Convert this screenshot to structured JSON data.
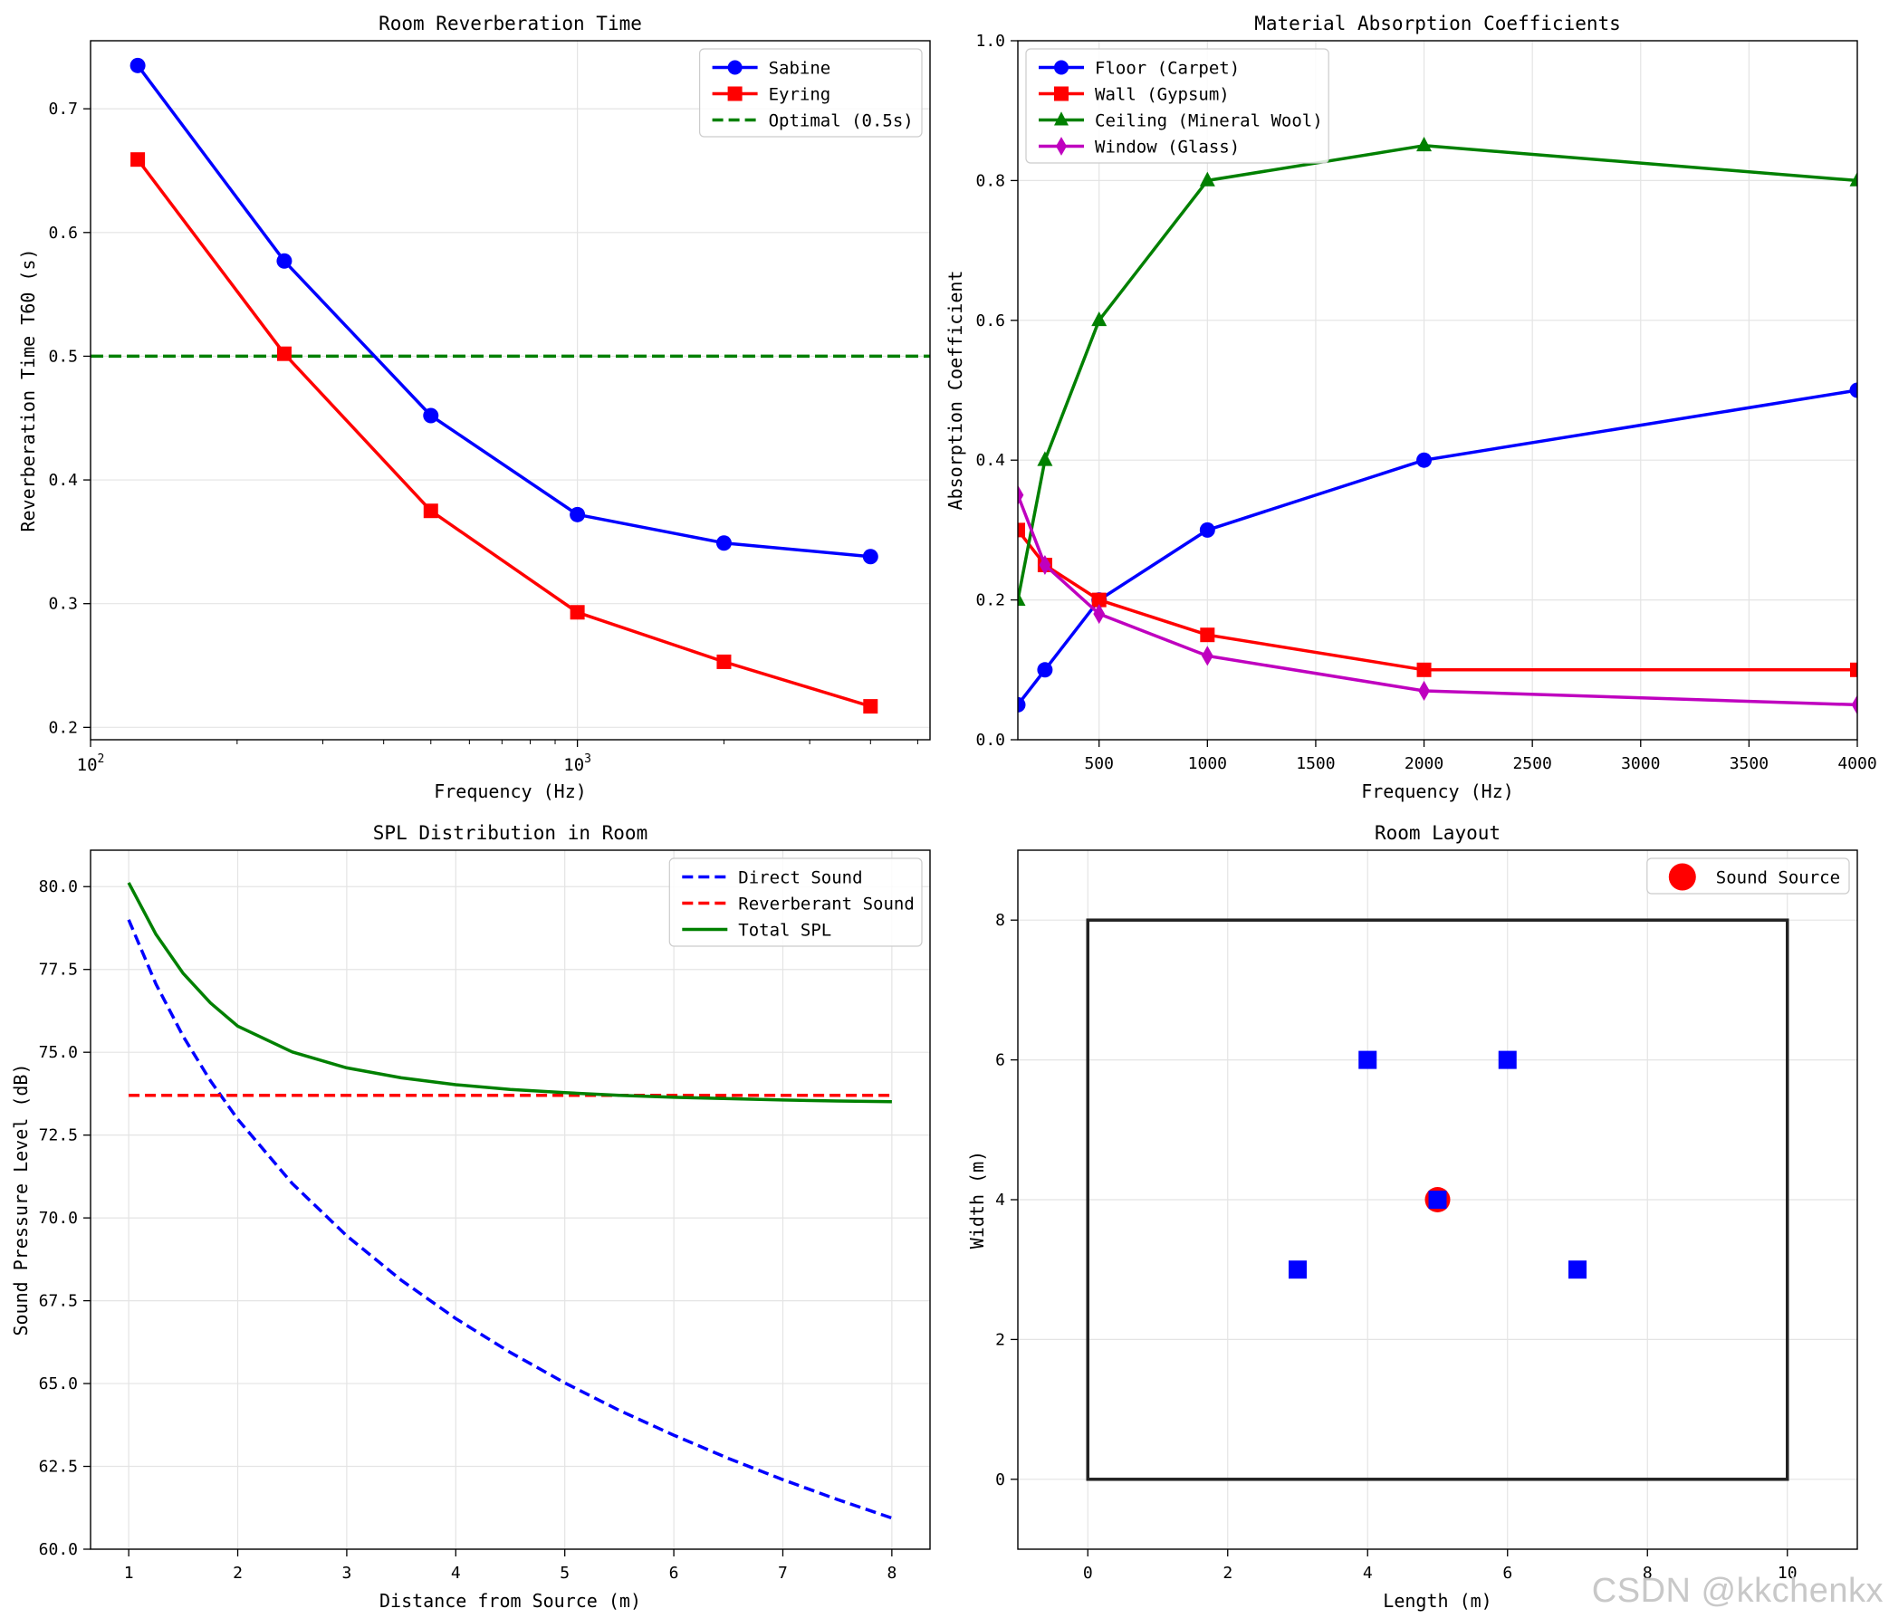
{
  "watermark": "CSDN @kkchenkx",
  "colors": {
    "blue": "#0000ff",
    "red": "#ff0000",
    "green": "#008000",
    "magenta": "#bf00bf",
    "black": "#222222",
    "grid": "#e4e4e4"
  },
  "chart_data": [
    {
      "id": "reverb",
      "type": "line",
      "title": "Room Reverberation Time",
      "xlabel": "Frequency (Hz)",
      "ylabel": "Reverberation Time T60 (s)",
      "xscale": "log",
      "xlim": [
        100,
        5300
      ],
      "ylim": [
        0.19,
        0.755
      ],
      "x_ticks": [
        100,
        1000
      ],
      "x_tick_labels": [
        {
          "base": "10",
          "exp": "2"
        },
        {
          "base": "10",
          "exp": "3"
        }
      ],
      "y_ticks": [
        0.2,
        0.3,
        0.4,
        0.5,
        0.6,
        0.7
      ],
      "y_tick_labels": [
        "0.2",
        "0.3",
        "0.4",
        "0.5",
        "0.6",
        "0.7"
      ],
      "x": [
        125,
        250,
        500,
        1000,
        2000,
        4000
      ],
      "series": [
        {
          "name": "Sabine",
          "color": "#0000ff",
          "marker": "circle",
          "values": [
            0.735,
            0.577,
            0.452,
            0.372,
            0.349,
            0.338
          ]
        },
        {
          "name": "Eyring",
          "color": "#ff0000",
          "marker": "square",
          "values": [
            0.659,
            0.502,
            0.375,
            0.293,
            0.253,
            0.217
          ]
        }
      ],
      "hlines": [
        {
          "name": "Optimal (0.5s)",
          "color": "#008000",
          "value": 0.5
        }
      ],
      "legend_position": "top-right",
      "legend": [
        {
          "label": "Sabine",
          "color": "#0000ff",
          "style": "solid",
          "marker": "circle"
        },
        {
          "label": "Eyring",
          "color": "#ff0000",
          "style": "solid",
          "marker": "square"
        },
        {
          "label": "Optimal (0.5s)",
          "color": "#008000",
          "style": "dashed",
          "marker": "none"
        }
      ]
    },
    {
      "id": "absorption",
      "type": "line",
      "title": "Material Absorption Coefficients",
      "xlabel": "Frequency (Hz)",
      "ylabel": "Absorption Coefficient",
      "xlim": [
        125,
        4000
      ],
      "ylim": [
        0,
        1.0
      ],
      "x_ticks": [
        500,
        1000,
        1500,
        2000,
        2500,
        3000,
        3500,
        4000
      ],
      "x_tick_labels": [
        "500",
        "1000",
        "1500",
        "2000",
        "2500",
        "3000",
        "3500",
        "4000"
      ],
      "y_ticks": [
        0,
        0.2,
        0.4,
        0.6,
        0.8,
        1.0
      ],
      "y_tick_labels": [
        "0.0",
        "0.2",
        "0.4",
        "0.6",
        "0.8",
        "1.0"
      ],
      "x": [
        125,
        250,
        500,
        1000,
        2000,
        4000
      ],
      "series": [
        {
          "name": "Floor (Carpet)",
          "color": "#0000ff",
          "marker": "circle",
          "values": [
            0.05,
            0.1,
            0.2,
            0.3,
            0.4,
            0.5
          ]
        },
        {
          "name": "Wall (Gypsum)",
          "color": "#ff0000",
          "marker": "square",
          "values": [
            0.3,
            0.25,
            0.2,
            0.15,
            0.1,
            0.1
          ]
        },
        {
          "name": "Ceiling (Mineral Wool)",
          "color": "#008000",
          "marker": "triangle",
          "values": [
            0.2,
            0.4,
            0.6,
            0.8,
            0.85,
            0.8
          ]
        },
        {
          "name": "Window (Glass)",
          "color": "#bf00bf",
          "marker": "diamond",
          "values": [
            0.35,
            0.25,
            0.18,
            0.12,
            0.07,
            0.05
          ]
        }
      ],
      "legend_position": "top-left",
      "legend": [
        {
          "label": "Floor (Carpet)",
          "color": "#0000ff",
          "style": "solid",
          "marker": "circle"
        },
        {
          "label": "Wall (Gypsum)",
          "color": "#ff0000",
          "style": "solid",
          "marker": "square"
        },
        {
          "label": "Ceiling (Mineral Wool)",
          "color": "#008000",
          "style": "solid",
          "marker": "triangle"
        },
        {
          "label": "Window (Glass)",
          "color": "#bf00bf",
          "style": "solid",
          "marker": "diamond"
        }
      ]
    },
    {
      "id": "spl",
      "type": "line",
      "title": "SPL Distribution in Room",
      "xlabel": "Distance from Source (m)",
      "ylabel": "Sound Pressure Level (dB)",
      "xlim": [
        0.65,
        8.35
      ],
      "ylim": [
        60,
        81.1
      ],
      "x_ticks": [
        1,
        2,
        3,
        4,
        5,
        6,
        7,
        8
      ],
      "x_tick_labels": [
        "1",
        "2",
        "3",
        "4",
        "5",
        "6",
        "7",
        "8"
      ],
      "y_ticks": [
        60,
        62.5,
        65,
        67.5,
        70,
        72.5,
        75,
        77.5,
        80
      ],
      "y_tick_labels": [
        "60.0",
        "62.5",
        "65.0",
        "67.5",
        "70.0",
        "72.5",
        "75.0",
        "77.5",
        "80.0"
      ],
      "x": [
        1.0,
        1.25,
        1.5,
        1.75,
        2.0,
        2.5,
        3.0,
        3.5,
        4.0,
        4.5,
        5.0,
        5.5,
        6.0,
        6.5,
        7.0,
        7.5,
        8.0
      ],
      "series": [
        {
          "name": "Direct Sound",
          "color": "#0000ff",
          "style": "dashed",
          "values": [
            79.0,
            77.06,
            75.48,
            74.14,
            72.98,
            71.04,
            69.46,
            68.12,
            66.96,
            65.94,
            65.02,
            64.19,
            63.44,
            62.74,
            62.1,
            61.5,
            60.94
          ]
        },
        {
          "name": "Reverberant Sound",
          "color": "#ff0000",
          "style": "dashed",
          "values": [
            73.7,
            73.7,
            73.7,
            73.7,
            73.7,
            73.7,
            73.7,
            73.7,
            73.7,
            73.7,
            73.7,
            73.7,
            73.7,
            73.7,
            73.7,
            73.7,
            73.7
          ]
        },
        {
          "name": "Total SPL",
          "color": "#008000",
          "style": "solid",
          "values": [
            80.12,
            78.56,
            77.38,
            76.49,
            75.79,
            75.01,
            74.53,
            74.23,
            74.02,
            73.88,
            73.78,
            73.7,
            73.64,
            73.6,
            73.56,
            73.53,
            73.51
          ]
        }
      ],
      "legend_position": "top-right",
      "legend": [
        {
          "label": "Direct Sound",
          "color": "#0000ff",
          "style": "dashed",
          "marker": "none"
        },
        {
          "label": "Reverberant Sound",
          "color": "#ff0000",
          "style": "dashed",
          "marker": "none"
        },
        {
          "label": "Total SPL",
          "color": "#008000",
          "style": "solid",
          "marker": "none"
        }
      ]
    },
    {
      "id": "layout",
      "type": "scatter",
      "title": "Room Layout",
      "xlabel": "Length (m)",
      "ylabel": "Width (m)",
      "xlim": [
        -1,
        11
      ],
      "ylim": [
        -1,
        9
      ],
      "x_ticks": [
        0,
        2,
        4,
        6,
        8,
        10
      ],
      "x_tick_labels": [
        "0",
        "2",
        "4",
        "6",
        "8",
        "10"
      ],
      "y_ticks": [
        0,
        2,
        4,
        6,
        8
      ],
      "y_tick_labels": [
        "0",
        "2",
        "4",
        "6",
        "8"
      ],
      "room": {
        "x0": 0,
        "y0": 0,
        "x1": 10,
        "y1": 8,
        "color": "#222222"
      },
      "source": {
        "name": "Sound Source",
        "x": 5,
        "y": 4,
        "color": "#ff0000"
      },
      "receivers": {
        "color": "#0000ff",
        "points": [
          {
            "x": 4,
            "y": 6
          },
          {
            "x": 6,
            "y": 6
          },
          {
            "x": 5,
            "y": 4
          },
          {
            "x": 3,
            "y": 3
          },
          {
            "x": 7,
            "y": 3
          }
        ]
      },
      "legend_position": "top-right",
      "legend": [
        {
          "label": "Sound Source",
          "color": "#ff0000",
          "style": "none",
          "marker": "big-circle"
        }
      ]
    }
  ]
}
